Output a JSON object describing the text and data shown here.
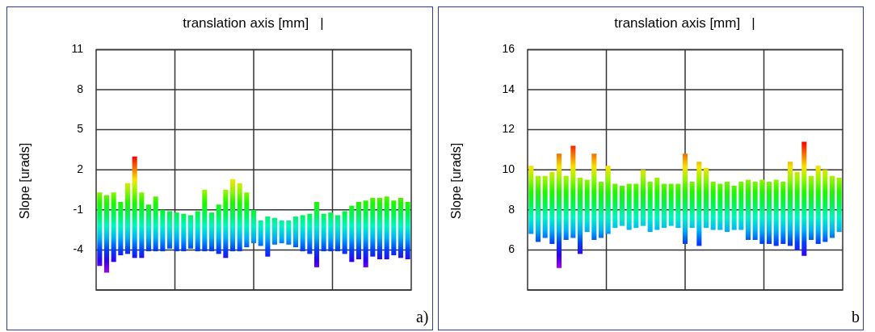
{
  "chart_data": [
    {
      "type": "bar",
      "title": "translation axis [mm]   |",
      "ylabel": "Slope [urads]",
      "annotations": [
        "a)"
      ],
      "categories": [
        null,
        null,
        null,
        null,
        null,
        null,
        null,
        null,
        null,
        null,
        null,
        null,
        null,
        null,
        null,
        null,
        null,
        null,
        null,
        null,
        null,
        null,
        null,
        null,
        null,
        null,
        null,
        null,
        null,
        null,
        null,
        null,
        null,
        null,
        null,
        null,
        null,
        null,
        null,
        null,
        null,
        null,
        null,
        null,
        null
      ],
      "base": [
        -5.2,
        -5.7,
        -4.9,
        -4.4,
        -4.3,
        -4.6,
        -4.6,
        -4.1,
        -4.1,
        -4.1,
        -3.9,
        -4.1,
        -4.1,
        -3.9,
        -4.1,
        -4.1,
        -4.1,
        -4.3,
        -4.6,
        -4.1,
        -4.1,
        -3.8,
        -3.5,
        -3.7,
        -4.5,
        -3.6,
        -3.5,
        -3.6,
        -3.8,
        -4.1,
        -4.3,
        -5.3,
        -4.1,
        -4.1,
        -4.1,
        -4.3,
        -4.9,
        -4.7,
        -5.3,
        -4.5,
        -4.7,
        -4.7,
        -4.4,
        -4.6,
        -4.7
      ],
      "values": [
        5.5,
        5.8,
        5.2,
        4.0,
        5.3,
        7.6,
        4.9,
        3.5,
        4.1,
        3.1,
        2.8,
        2.9,
        2.8,
        2.5,
        3.0,
        4.6,
        2.9,
        3.7,
        5.1,
        5.4,
        5.1,
        4.1,
        2.5,
        1.9,
        3.0,
        2.0,
        1.7,
        1.8,
        2.3,
        2.7,
        3.0,
        4.9,
        2.8,
        2.9,
        2.7,
        3.2,
        4.2,
        4.3,
        5.0,
        4.4,
        4.6,
        4.7,
        4.1,
        4.5,
        4.3
      ],
      "ylim": [
        -7,
        11
      ],
      "yticks": [
        {
          "value": -7,
          "label": null
        },
        -4,
        -1,
        2,
        5,
        8,
        11
      ],
      "grid": true
    },
    {
      "type": "bar",
      "title": "translation axis [mm]   |",
      "ylabel": "Slope [urads]",
      "annotations": [
        "b"
      ],
      "categories": [
        null,
        null,
        null,
        null,
        null,
        null,
        null,
        null,
        null,
        null,
        null,
        null,
        null,
        null,
        null,
        null,
        null,
        null,
        null,
        null,
        null,
        null,
        null,
        null,
        null,
        null,
        null,
        null,
        null,
        null,
        null,
        null,
        null,
        null,
        null,
        null,
        null,
        null,
        null,
        null,
        null,
        null,
        null,
        null,
        null
      ],
      "base": [
        6.8,
        6.4,
        6.6,
        6.3,
        5.1,
        6.5,
        6.6,
        5.8,
        6.9,
        6.5,
        6.6,
        6.8,
        7.1,
        7.2,
        7.0,
        7.1,
        7.2,
        6.9,
        7.0,
        7.1,
        7.2,
        7.1,
        6.3,
        7.1,
        6.2,
        7.1,
        7.0,
        7.0,
        6.9,
        7.0,
        7.0,
        6.5,
        6.5,
        6.3,
        6.3,
        6.2,
        6.3,
        6.2,
        6.0,
        5.7,
        6.5,
        6.3,
        6.4,
        6.6,
        6.9
      ],
      "values": [
        3.4,
        3.3,
        3.1,
        3.6,
        5.7,
        3.2,
        4.6,
        3.8,
        2.6,
        4.3,
        2.8,
        3.4,
        2.2,
        2.0,
        2.3,
        2.2,
        2.8,
        2.5,
        2.6,
        2.2,
        2.1,
        2.2,
        4.5,
        2.3,
        4.2,
        3.0,
        2.4,
        2.3,
        2.5,
        2.2,
        2.4,
        3.0,
        2.9,
        3.2,
        3.1,
        3.3,
        3.1,
        4.2,
        3.9,
        5.7,
        3.2,
        3.9,
        3.6,
        3.1,
        2.7
      ],
      "ylim": [
        4,
        16
      ],
      "yticks": [
        {
          "value": 4,
          "label": null
        },
        6,
        8,
        10,
        12,
        14,
        16
      ],
      "grid": true
    }
  ]
}
